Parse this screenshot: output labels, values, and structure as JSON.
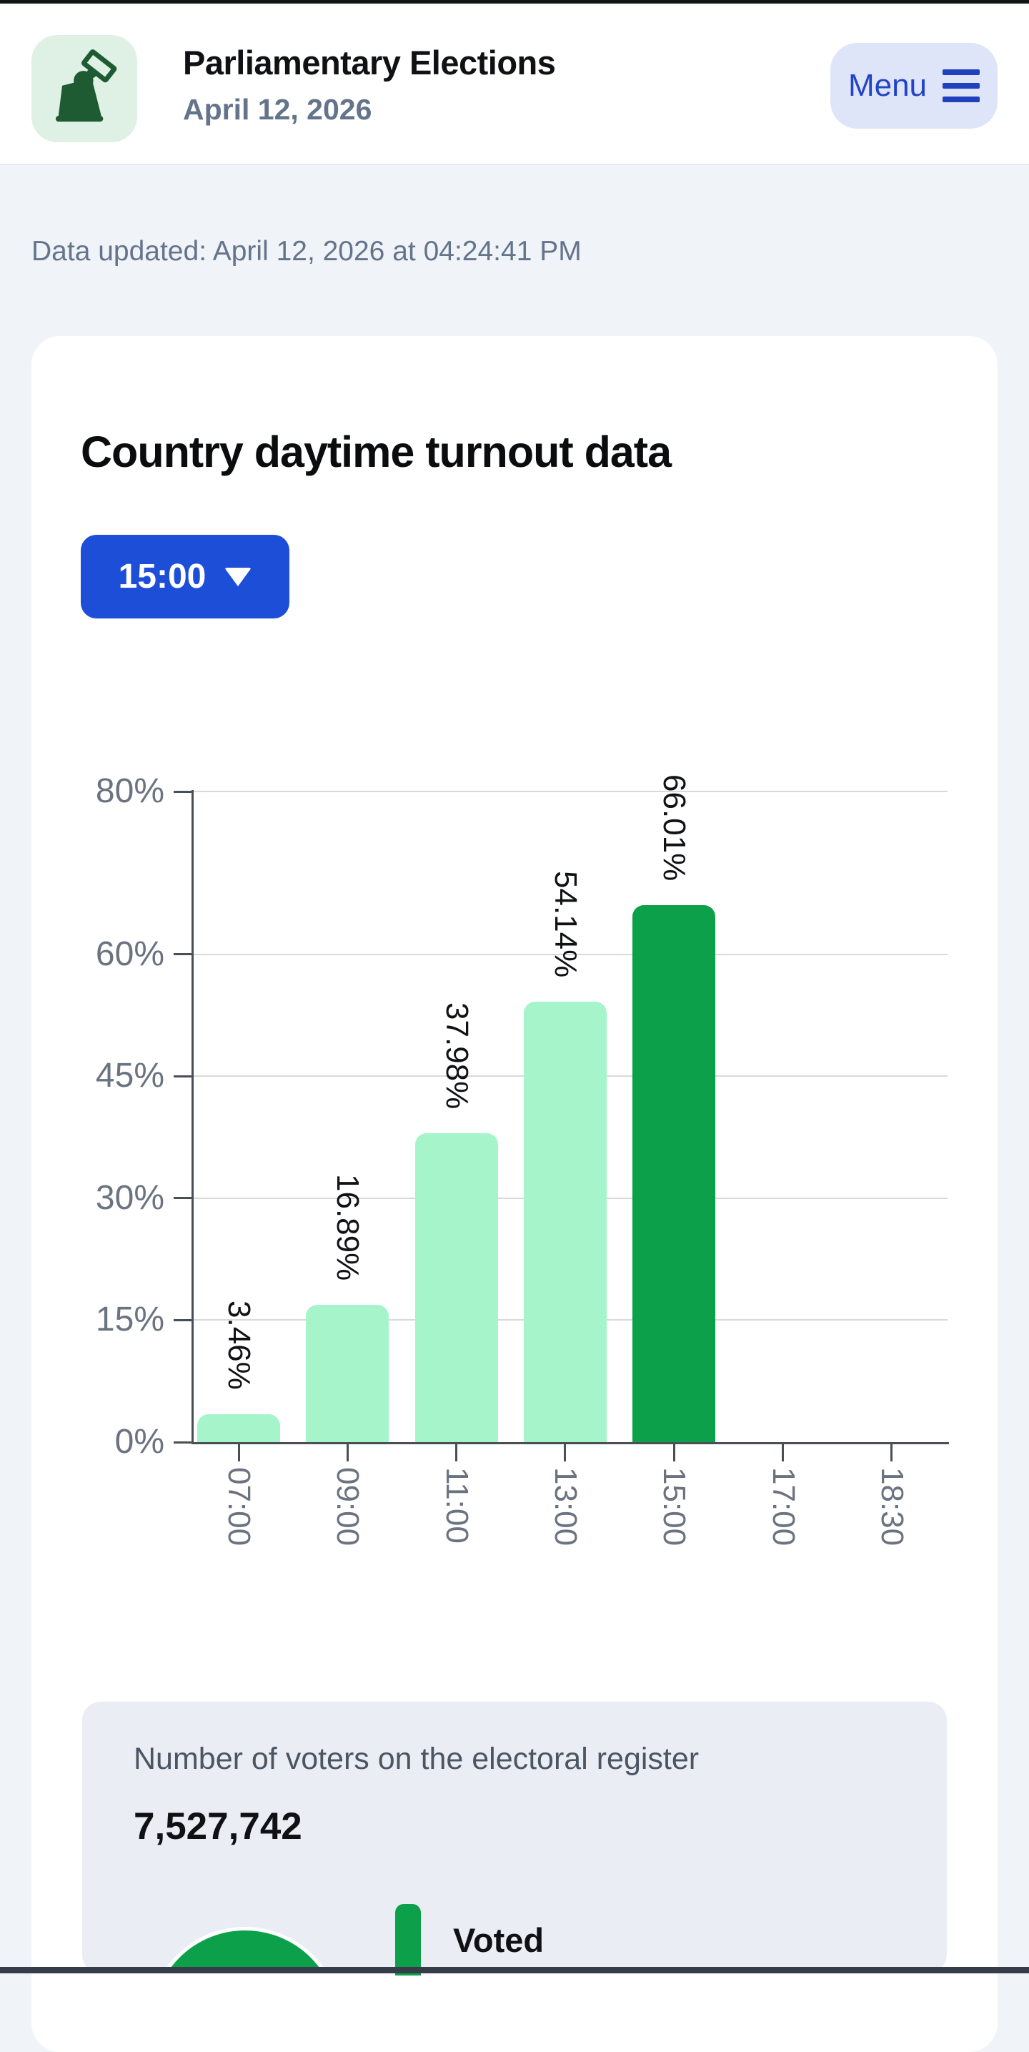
{
  "header": {
    "app_icon": "ballot-hand-icon",
    "title": "Parliamentary Elections",
    "subtitle": "April 12, 2026",
    "menu_button": "Menu"
  },
  "status_bar": {
    "data_updated": "Data updated: April 12, 2026 at 04:24:41 PM"
  },
  "turnout_section": {
    "heading": "Country daytime turnout data",
    "time_selector": {
      "selected_value": "15:00",
      "icon": "chevron-down-icon"
    }
  },
  "register_section": {
    "title": "Number of voters on the electoral register",
    "value": "7,527,742",
    "legend": [
      {
        "label": "Voted",
        "color": "#0ca04a"
      }
    ]
  },
  "colors": {
    "accent_blue": "#1d4ed8",
    "menu_blue": "#2344c8",
    "bar_light_green": "#a5f4ca",
    "bar_dark_green": "#0ca04a",
    "icon_tile_green": "#dff1e4",
    "icon_glyph_green": "#1e5b33",
    "page_background": "#f0f3f8",
    "stat_card_background": "#eaeef4"
  },
  "chart_data": [
    {
      "type": "bar",
      "title": "Country daytime turnout data",
      "categories": [
        "07:00",
        "09:00",
        "11:00",
        "13:00",
        "15:00",
        "17:00",
        "18:30"
      ],
      "values": [
        3.46,
        16.89,
        37.98,
        54.14,
        66.01,
        null,
        null
      ],
      "bar_labels": [
        "3.46%",
        "16.89%",
        "37.98%",
        "54.14%",
        "66.01%",
        null,
        null
      ],
      "xlabel": "",
      "ylabel": "",
      "y_ticks": [
        0,
        15,
        30,
        45,
        60,
        80
      ],
      "y_tick_labels": [
        "0%",
        "15%",
        "30%",
        "45%",
        "60%",
        "80%"
      ],
      "ylim": [
        0,
        80
      ],
      "grid": true,
      "legend_position": "none",
      "bar_color_default": "#a5f4ca",
      "bar_color_highlight": "#0ca04a",
      "highlight_index": 4,
      "label_rotation_deg": 90
    },
    {
      "type": "pie",
      "subtype": "donut",
      "labels": [
        "Voted"
      ],
      "colors": [
        "#0ca04a"
      ],
      "values": [
        null
      ],
      "legend_position": "right",
      "note_visible_portion": "top arc only"
    }
  ]
}
